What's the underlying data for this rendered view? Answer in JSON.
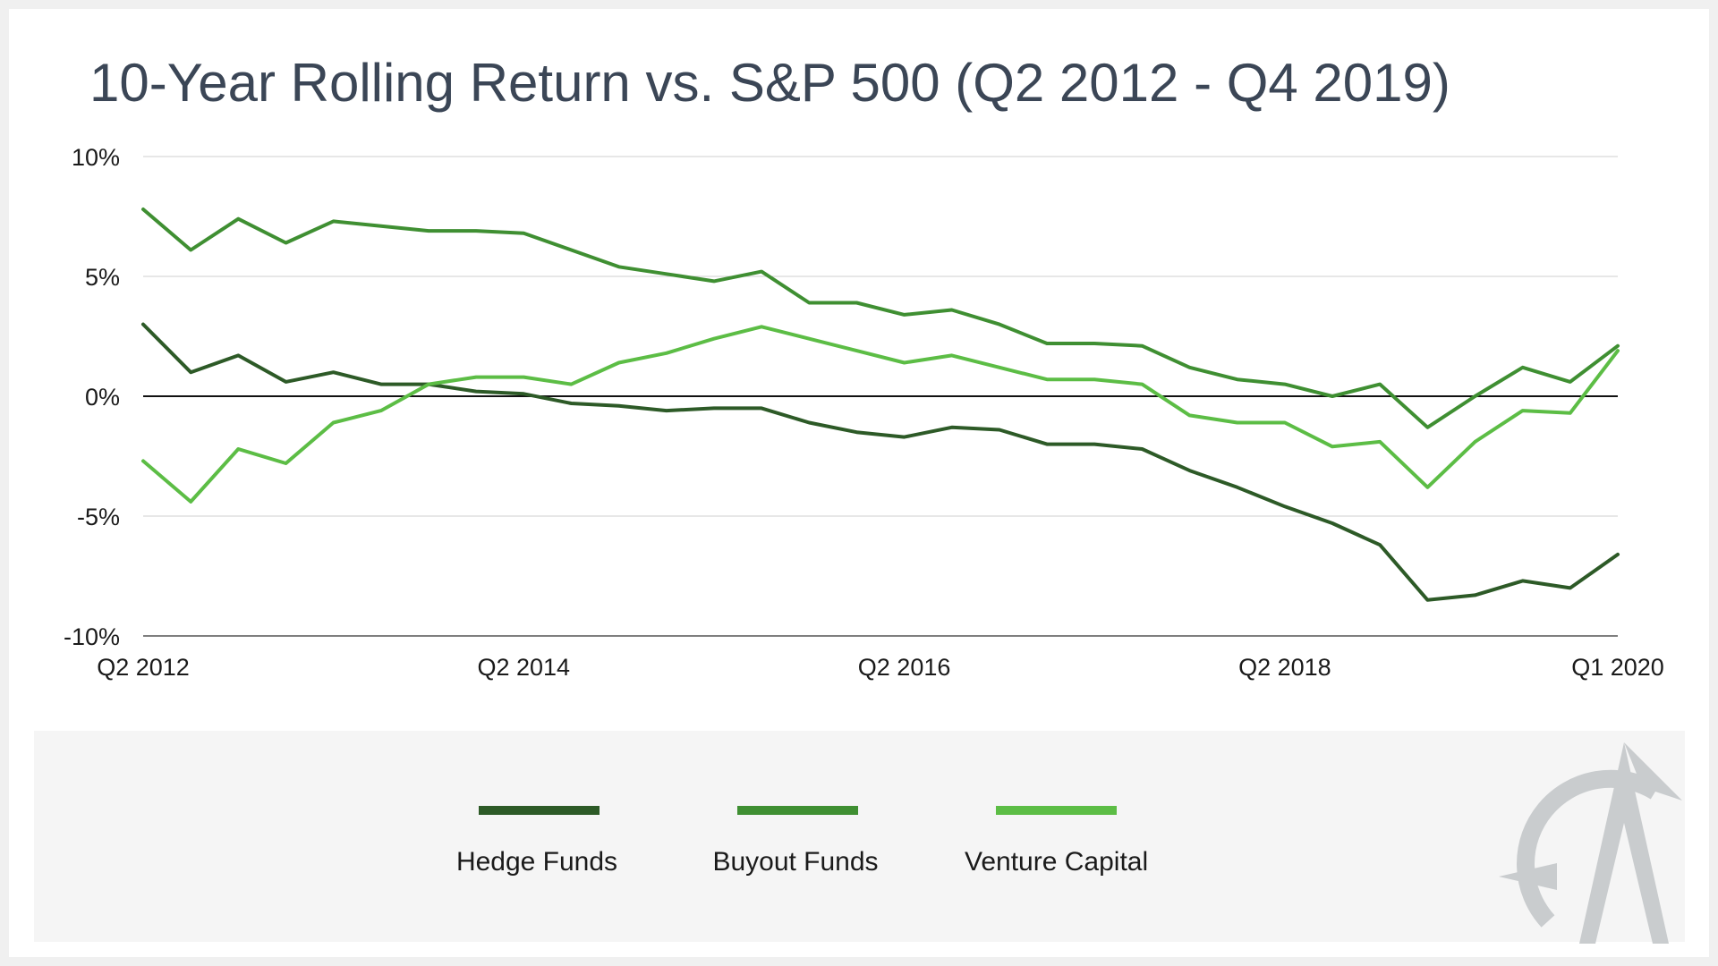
{
  "chart_data": {
    "type": "line",
    "title": "10-Year Rolling Return vs. S&P 500 (Q2 2012 - Q4 2019)",
    "x_tick_labels": [
      "Q2 2012",
      "Q2 2014",
      "Q2 2016",
      "Q2 2018",
      "Q1 2020"
    ],
    "y_tick_labels": [
      "10%",
      "5%",
      "0%",
      "-5%",
      "-10%"
    ],
    "ylim": [
      -10,
      10
    ],
    "y_ticks": [
      10,
      5,
      0,
      -5,
      -10
    ],
    "grid": true,
    "zero_line": true,
    "legend_position": "bottom",
    "series": [
      {
        "name": "Hedge Funds",
        "color": "#2d5a27",
        "values": [
          3.0,
          1.0,
          1.7,
          0.6,
          1.0,
          0.5,
          0.5,
          0.2,
          0.1,
          -0.3,
          -0.4,
          -0.6,
          -0.5,
          -0.5,
          -1.1,
          -1.5,
          -1.7,
          -1.3,
          -1.4,
          -2.0,
          -2.0,
          -2.2,
          -3.1,
          -3.8,
          -4.6,
          -5.3,
          -6.2,
          -8.5,
          -8.3,
          -7.7,
          -8.0,
          -6.6
        ]
      },
      {
        "name": "Buyout Funds",
        "color": "#3f8f32",
        "values": [
          7.8,
          6.1,
          7.4,
          6.4,
          7.3,
          7.1,
          6.9,
          6.9,
          6.8,
          6.1,
          5.4,
          5.1,
          4.8,
          5.2,
          3.9,
          3.9,
          3.4,
          3.6,
          3.0,
          2.2,
          2.2,
          2.1,
          1.2,
          0.7,
          0.5,
          0.0,
          0.5,
          -1.3,
          0.0,
          1.2,
          0.6,
          2.1
        ]
      },
      {
        "name": "Venture Capital",
        "color": "#5cbd45",
        "values": [
          -2.7,
          -4.4,
          -2.2,
          -2.8,
          -1.1,
          -0.6,
          0.5,
          0.8,
          0.8,
          0.5,
          1.4,
          1.8,
          2.4,
          2.9,
          2.4,
          1.9,
          1.4,
          1.7,
          1.2,
          0.7,
          0.7,
          0.5,
          -0.8,
          -1.1,
          -1.1,
          -2.1,
          -1.9,
          -3.8,
          -1.9,
          -0.6,
          -0.7,
          1.9
        ]
      }
    ]
  }
}
